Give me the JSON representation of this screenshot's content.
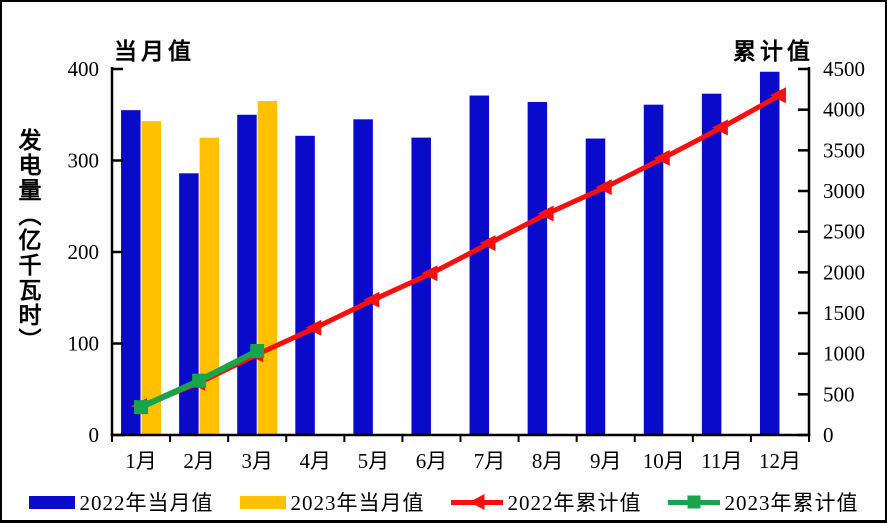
{
  "chart_data": {
    "type": "combo-bar-line",
    "y_axis_title": "发电量（亿千瓦时）",
    "categories": [
      "1月",
      "2月",
      "3月",
      "4月",
      "5月",
      "6月",
      "7月",
      "8月",
      "9月",
      "10月",
      "11月",
      "12月"
    ],
    "left_axis": {
      "header": "当月值",
      "min": 0,
      "max": 400,
      "ticks": [
        0,
        100,
        200,
        300,
        400
      ]
    },
    "right_axis": {
      "header": "累计值",
      "min": 0,
      "max": 4500,
      "ticks": [
        0,
        500,
        1000,
        1500,
        2000,
        2500,
        3000,
        3500,
        4000,
        4500
      ]
    },
    "grid": false,
    "legend_position": "bottom",
    "series": [
      {
        "name": "2022年当月值",
        "type": "bar",
        "axis": "left",
        "color": "#0a0aca",
        "values": [
          355,
          286,
          350,
          327,
          345,
          325,
          371,
          364,
          324,
          361,
          373,
          397
        ]
      },
      {
        "name": "2023年当月值",
        "type": "bar",
        "axis": "left",
        "color": "#ffc000",
        "values": [
          343,
          325,
          365,
          null,
          null,
          null,
          null,
          null,
          null,
          null,
          null,
          null
        ]
      },
      {
        "name": "2022年累计值",
        "type": "line",
        "marker": "triangle",
        "axis": "right",
        "color": "#fe0d0d",
        "values": [
          355,
          641,
          991,
          1318,
          1663,
          1988,
          2359,
          2723,
          3047,
          3408,
          3781,
          4178
        ]
      },
      {
        "name": "2023年累计值",
        "type": "line",
        "marker": "square",
        "axis": "right",
        "color": "#17a44b",
        "values": [
          343,
          668,
          1033,
          null,
          null,
          null,
          null,
          null,
          null,
          null,
          null,
          null
        ]
      }
    ]
  }
}
